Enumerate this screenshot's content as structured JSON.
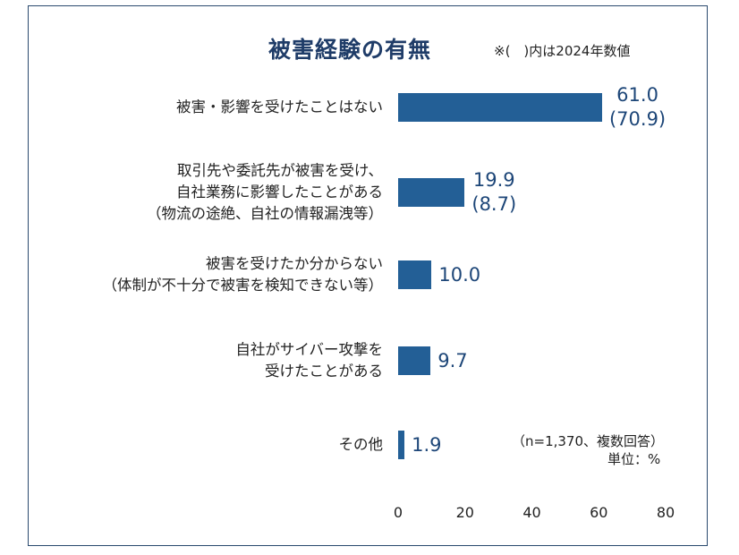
{
  "chart_data": {
    "type": "bar",
    "orientation": "horizontal",
    "title": "被害経験の有無",
    "note": "※(　)内は2024年数値",
    "sample_note": "（n=1,370、複数回答）",
    "unit_note": "単位：%",
    "categories": [
      [
        "被害・影響を受けたことはない"
      ],
      [
        "取引先や委託先が被害を受け、",
        "自社業務に影響したことがある",
        "（物流の途絶、自社の情報漏洩等）"
      ],
      [
        "被害を受けたか分からない",
        "（体制が不十分で被害を検知できない等）"
      ],
      [
        "自社がサイバー攻撃を",
        "受けたことがある"
      ],
      [
        "その他"
      ]
    ],
    "values": [
      61.0,
      19.9,
      10.0,
      9.7,
      1.9
    ],
    "value_labels": [
      "61.0",
      "19.9",
      "10.0",
      "9.7",
      "1.9"
    ],
    "prev_labels": [
      "(70.9)",
      "(8.7)",
      "",
      "",
      ""
    ],
    "xlim": [
      0,
      80
    ],
    "xticks": [
      "0",
      "20",
      "40",
      "60",
      "80"
    ],
    "bar_color": "#235f96",
    "grid": false
  }
}
